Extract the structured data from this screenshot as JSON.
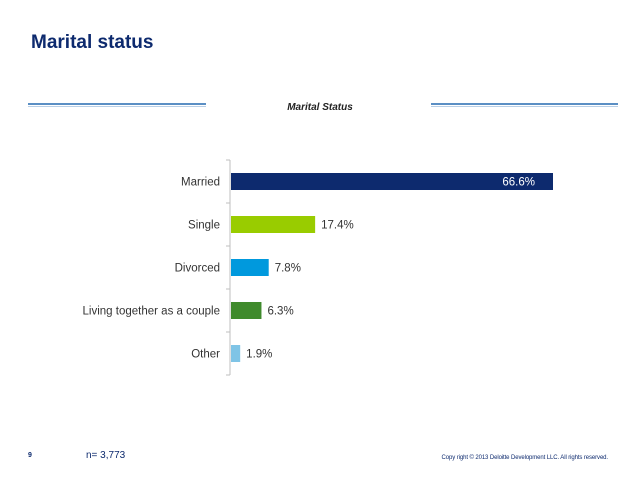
{
  "page": {
    "title": "Marital status",
    "page_number": "9",
    "sample_size": "n= 3,773",
    "copyright": "Copy right © 2013 Deloitte Development LLC. All rights reserved."
  },
  "chart_data": {
    "type": "bar",
    "orientation": "horizontal",
    "title": "Marital Status",
    "categories": [
      "Married",
      "Single",
      "Divorced",
      "Living together as a couple",
      "Other"
    ],
    "values": [
      66.6,
      17.4,
      7.8,
      6.3,
      1.9
    ],
    "value_labels": [
      "66.6%",
      "17.4%",
      "7.8%",
      "6.3%",
      "1.9%"
    ],
    "unit": "%",
    "colors": [
      "#0d2a6e",
      "#99cc00",
      "#0099dd",
      "#3f8a2c",
      "#7fc4e6"
    ],
    "label_colors": [
      "#ffffff",
      "#333333",
      "#333333",
      "#333333",
      "#333333"
    ],
    "xlim": [
      0,
      70
    ],
    "grid": false,
    "legend": "none"
  },
  "colors": {
    "title": "#0d2a6e",
    "rule": "#5b8fc4"
  }
}
